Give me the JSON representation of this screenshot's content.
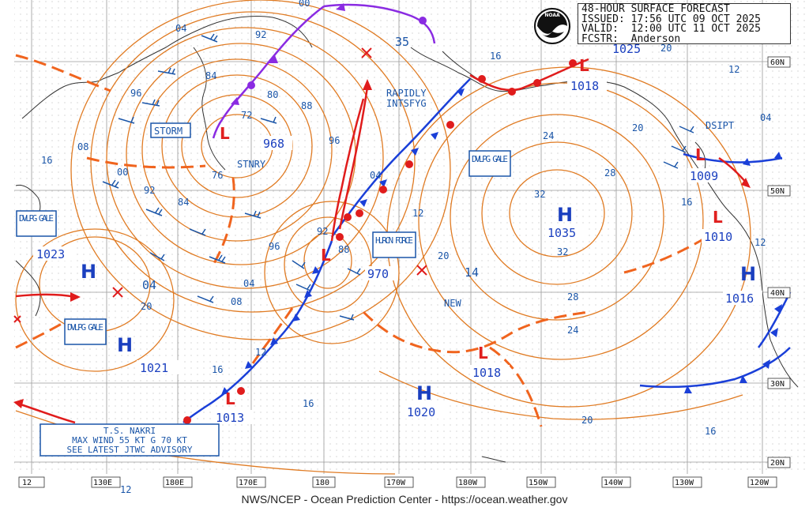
{
  "header": {
    "title": "48-HOUR SURFACE FORECAST",
    "issued": "ISSUED: 17:56 UTC 09 OCT 2025",
    "valid": "VALID:  12:00 UTC 11 OCT 2025",
    "forecaster": "FCSTR:  Anderson",
    "logo_text": "NOAA"
  },
  "footer": "NWS/NCEP - Ocean Prediction Center - https://ocean.weather.gov",
  "colors": {
    "isobar": "#e07b23",
    "trough": "#f0641e",
    "low": "#e0201f",
    "high": "#1a3fbf",
    "cold_front": "#1a3fd8",
    "warm_front": "#e01c1c",
    "occluded": "#8a2be2",
    "wind_barb": "#1a55a8",
    "box_text": "#1a55a8"
  },
  "lat_labels": [
    "60N",
    "50N",
    "40N",
    "30N",
    "20N"
  ],
  "lon_labels": [
    "12",
    "130E",
    "180E",
    "170E",
    "180",
    "170W",
    "180W",
    "150W",
    "140W",
    "130W",
    "120W"
  ],
  "pressure_centers": [
    {
      "kind": "L",
      "value": "968",
      "note": "STNRY"
    },
    {
      "kind": "L",
      "value": "970"
    },
    {
      "kind": "L",
      "value": "1018"
    },
    {
      "kind": "L",
      "value": "1009"
    },
    {
      "kind": "L",
      "value": "1010"
    },
    {
      "kind": "L",
      "value": "1018"
    },
    {
      "kind": "L",
      "value": "1013"
    },
    {
      "kind": "H",
      "value": "1035"
    },
    {
      "kind": "H",
      "value": "1023"
    },
    {
      "kind": "H",
      "value": "1021"
    },
    {
      "kind": "H",
      "value": "1020"
    },
    {
      "kind": "H",
      "value": "1016"
    },
    {
      "kind": "H",
      "value": "1025"
    }
  ],
  "boxed_labels": [
    {
      "id": "storm",
      "text": "STORM"
    },
    {
      "id": "dvlpg-gale-1",
      "text": "DVLPG GALE"
    },
    {
      "id": "dvlpg-gale-2",
      "text": "DVLPG GALE"
    },
    {
      "id": "dvlpg-gale-3",
      "text": "DVLPG GALE"
    },
    {
      "id": "hurcn-force",
      "text": "HURCN FORCE"
    }
  ],
  "plain_labels": {
    "rapidly": "RAPIDLY",
    "intsfyg": "INTSFYG",
    "stnry": "STNRY",
    "new": "NEW",
    "dsipt": "DSIPT",
    "val_35": "35",
    "val_14": "14",
    "val_04": "04"
  },
  "advisory": {
    "line1": "T.S. NAKRI",
    "line2": "MAX WIND 55 KT G 70 KT",
    "line3": "SEE LATEST JTWC ADVISORY"
  },
  "isobar_labels": [
    "04",
    "96",
    "84",
    "80",
    "88",
    "92",
    "72",
    "76",
    "08",
    "16",
    "00",
    "92",
    "84",
    "96",
    "04",
    "08",
    "20",
    "12",
    "16",
    "04",
    "12",
    "20",
    "16",
    "24",
    "28",
    "32",
    "32",
    "28",
    "24",
    "20",
    "16",
    "12",
    "04",
    "16",
    "12",
    "20",
    "00",
    "92",
    "88",
    "96",
    "20",
    "16",
    "12"
  ]
}
